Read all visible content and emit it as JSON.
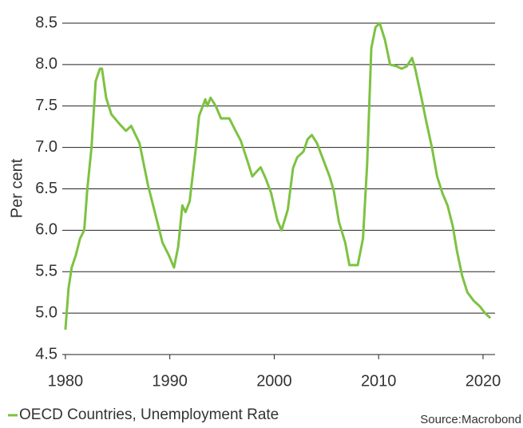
{
  "chart_data": {
    "type": "line",
    "y_label": "Per cent",
    "source": "Source:Macrobond",
    "xlim": [
      1979.7,
      2021.15
    ],
    "xticks": [
      1980,
      1990,
      2000,
      2010,
      2020
    ],
    "ylim": [
      4.5,
      8.5
    ],
    "yticks": [
      {
        "value": 4.5,
        "label": "4.5"
      },
      {
        "value": 5,
        "label": "5.0"
      },
      5.5,
      {
        "value": 6,
        "label": "6.0"
      },
      6.5,
      {
        "value": 7,
        "label": "7.0"
      },
      7.5,
      {
        "value": 8,
        "label": "8.0"
      },
      8.5
    ],
    "grid": true,
    "legend": "bottom-left",
    "x": [
      1980.0,
      1980.3,
      1980.6,
      1981.0,
      1981.4,
      1981.8,
      1982.1,
      1982.5,
      1982.9,
      1983.3,
      1983.5,
      1983.9,
      1984.4,
      1985.2,
      1985.8,
      1986.3,
      1987.1,
      1987.9,
      1988.6,
      1989.3,
      1989.9,
      1990.4,
      1990.8,
      1991.2,
      1991.5,
      1991.9,
      1992.5,
      1992.8,
      1993.4,
      1993.6,
      1993.9,
      1994.4,
      1994.9,
      1995.7,
      1996.3,
      1996.8,
      1997.4,
      1997.9,
      1998.4,
      1998.7,
      1999.2,
      1999.7,
      2000.3,
      2000.7,
      2001.3,
      2001.8,
      2002.2,
      2002.8,
      2003.2,
      2003.6,
      2004.1,
      2004.7,
      2005.3,
      2005.7,
      2006.2,
      2006.8,
      2007.2,
      2008.0,
      2008.5,
      2008.9,
      2009.3,
      2009.7,
      2010.1,
      2010.6,
      2011.1,
      2011.7,
      2012.2,
      2012.7,
      2013.2,
      2013.5,
      2014.1,
      2014.5,
      2015.1,
      2015.6,
      2016.1,
      2016.6,
      2017.1,
      2017.5,
      2018.0,
      2018.5,
      2019.1,
      2019.7,
      2020.2,
      2020.7
    ],
    "series": [
      {
        "name": "OECD Countries, Unemployment Rate",
        "color": "#7dc242",
        "values": [
          4.8,
          5.3,
          5.55,
          5.7,
          5.9,
          6.0,
          6.5,
          7.0,
          7.8,
          7.95,
          7.95,
          7.6,
          7.4,
          7.28,
          7.2,
          7.26,
          7.05,
          6.55,
          6.2,
          5.85,
          5.7,
          5.55,
          5.8,
          6.3,
          6.22,
          6.35,
          7.0,
          7.38,
          7.58,
          7.5,
          7.6,
          7.5,
          7.35,
          7.35,
          7.2,
          7.08,
          6.85,
          6.65,
          6.72,
          6.76,
          6.62,
          6.45,
          6.12,
          6.0,
          6.25,
          6.75,
          6.88,
          6.95,
          7.1,
          7.15,
          7.05,
          6.85,
          6.65,
          6.48,
          6.1,
          5.85,
          5.58,
          5.58,
          5.9,
          6.8,
          8.2,
          8.45,
          8.5,
          8.3,
          8.0,
          7.98,
          7.95,
          7.98,
          8.08,
          7.95,
          7.6,
          7.35,
          7.0,
          6.65,
          6.45,
          6.3,
          6.05,
          5.75,
          5.45,
          5.25,
          5.15,
          5.08,
          5.0,
          4.94
        ]
      }
    ]
  }
}
